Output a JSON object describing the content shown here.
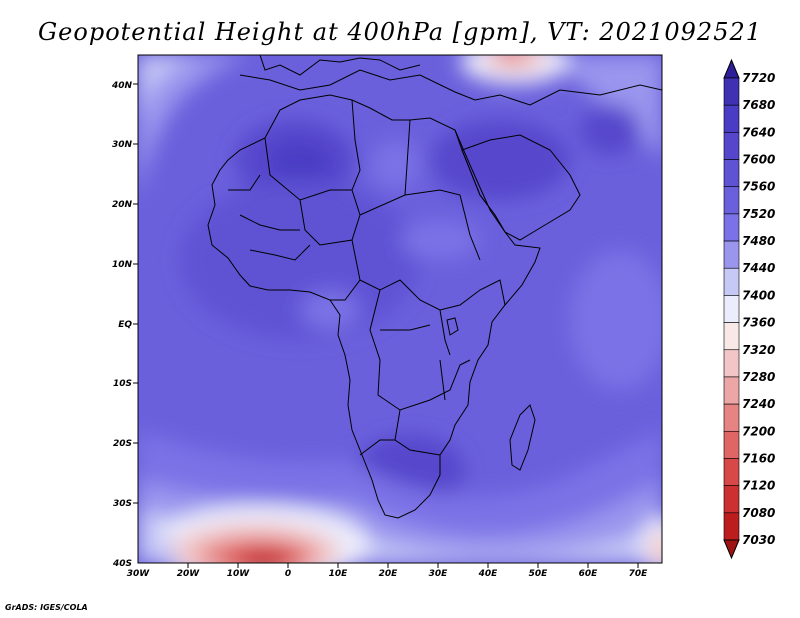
{
  "title": "Geopotential Height at 400hPa [gpm], VT: 2021092521",
  "credit": "GrADS: IGES/COLA",
  "map": {
    "lon_range": [
      -30,
      75
    ],
    "lat_range": [
      -40,
      45
    ],
    "lat_labels": [
      "40N",
      "30N",
      "20N",
      "10N",
      "EQ",
      "10S",
      "20S",
      "30S",
      "40S"
    ],
    "lon_labels": [
      "30W",
      "20W",
      "10W",
      "0",
      "10E",
      "20E",
      "30E",
      "40E",
      "50E",
      "60E",
      "70E"
    ],
    "border_color": "#000000"
  },
  "colorbar": {
    "levels": [
      "7720",
      "7680",
      "7640",
      "7600",
      "7560",
      "7520",
      "7480",
      "7440",
      "7400",
      "7360",
      "7320",
      "7280",
      "7240",
      "7200",
      "7160",
      "7120",
      "7080",
      "7030"
    ],
    "colors": [
      "#2e1e98",
      "#3f30b4",
      "#4a3cc4",
      "#5646cc",
      "#5f52d4",
      "#6a60dc",
      "#7a72e6",
      "#9a96ee",
      "#c6c8f6",
      "#ecedfc",
      "#f8e8e8",
      "#f2c6c6",
      "#eca6a6",
      "#e68484",
      "#e06666",
      "#d84848",
      "#cc3030",
      "#bc1e1e",
      "#9e1414"
    ]
  }
}
